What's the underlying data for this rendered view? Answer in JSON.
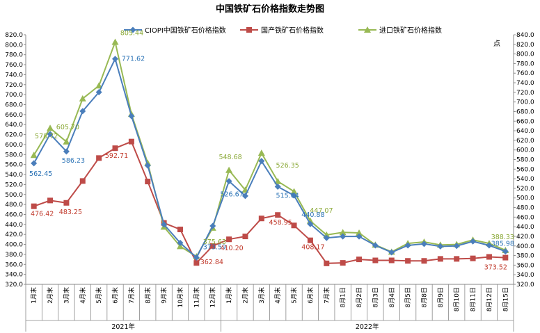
{
  "chart_data": {
    "type": "line",
    "title": "中国铁矿石价格指数走势图",
    "y_unit_right": "点",
    "ylim_left": [
      320,
      820
    ],
    "ylim_right": [
      320,
      840
    ],
    "ytick_step": 20,
    "grid": false,
    "legend_position": "top",
    "categories": [
      "1月末",
      "2月末",
      "3月末",
      "4月末",
      "5月末",
      "6月末",
      "7月末",
      "8月末",
      "9月末",
      "10月末",
      "11月末",
      "12月末",
      "1月末",
      "2月末",
      "3月末",
      "4月末",
      "5月末",
      "6月末",
      "7月末",
      "8月1日",
      "8月2日",
      "8月3日",
      "8月4日",
      "8月5日",
      "8月8日",
      "8月9日",
      "8月10日",
      "8月11日",
      "8月12日",
      "8月15日"
    ],
    "groups": [
      {
        "label": "2021年",
        "start": 0,
        "end": 11
      },
      {
        "label": "2022年",
        "start": 12,
        "end": 29
      }
    ],
    "series": [
      {
        "name": "CIOPI中国铁矿石价格指数",
        "color": "#4a7ebb",
        "marker": "diamond",
        "values": [
          562.45,
          621,
          586.23,
          667,
          705,
          771.62,
          657,
          558,
          440,
          403,
          373.59,
          437,
          526.67,
          497,
          567,
          515.64,
          498,
          440.88,
          413,
          416,
          416,
          398,
          384,
          398,
          401,
          396,
          397,
          406,
          398,
          385.98
        ]
      },
      {
        "name": "国产铁矿石价格指数",
        "color": "#be4b48",
        "marker": "square",
        "values": [
          476.42,
          488,
          483.25,
          527,
          573,
          592.71,
          606,
          526,
          443,
          430,
          362.84,
          397,
          410.2,
          416,
          452,
          458.95,
          438,
          408.17,
          362,
          363,
          370,
          368,
          368,
          367,
          367,
          371,
          371,
          372,
          375,
          373.52
        ]
      },
      {
        "name": "进口铁矿石价格指数",
        "color": "#98b954",
        "marker": "triangle",
        "values": [
          578.72,
          633,
          605.7,
          692,
          718,
          805.44,
          661,
          563,
          435,
          396,
          375.63,
          433,
          548.68,
          509,
          583,
          526.35,
          506,
          447.07,
          419,
          424,
          423,
          399,
          385,
          402,
          405,
          399,
          400,
          409,
          402,
          388.33
        ]
      }
    ]
  },
  "data_labels": [
    {
      "text": "578.72",
      "series": 2,
      "index": 0
    },
    {
      "text": "562.45",
      "series": 0,
      "index": 0
    },
    {
      "text": "476.42",
      "series": 1,
      "index": 0
    },
    {
      "text": "605.70",
      "series": 2,
      "index": 2
    },
    {
      "text": "586.23",
      "series": 0,
      "index": 2
    },
    {
      "text": "483.25",
      "series": 1,
      "index": 2
    },
    {
      "text": "805.44",
      "series": 2,
      "index": 5
    },
    {
      "text": "771.62",
      "series": 0,
      "index": 5
    },
    {
      "text": "592.71",
      "series": 1,
      "index": 5
    },
    {
      "text": "375.63",
      "series": 2,
      "index": 10
    },
    {
      "text": "373.59",
      "series": 0,
      "index": 10
    },
    {
      "text": "362.84",
      "series": 1,
      "index": 10
    },
    {
      "text": "548.68",
      "series": 2,
      "index": 12
    },
    {
      "text": "526.67",
      "series": 0,
      "index": 12
    },
    {
      "text": "410.20",
      "series": 1,
      "index": 12
    },
    {
      "text": "526.35",
      "series": 2,
      "index": 15
    },
    {
      "text": "515.64",
      "series": 0,
      "index": 15
    },
    {
      "text": "458.95",
      "series": 1,
      "index": 15
    },
    {
      "text": "447.07",
      "series": 2,
      "index": 17
    },
    {
      "text": "440.88",
      "series": 0,
      "index": 17
    },
    {
      "text": "408.17",
      "series": 1,
      "index": 17
    },
    {
      "text": "388.33",
      "series": 2,
      "index": 29
    },
    {
      "text": "385.98",
      "series": 0,
      "index": 29
    },
    {
      "text": "373.52",
      "series": 1,
      "index": 29
    }
  ]
}
